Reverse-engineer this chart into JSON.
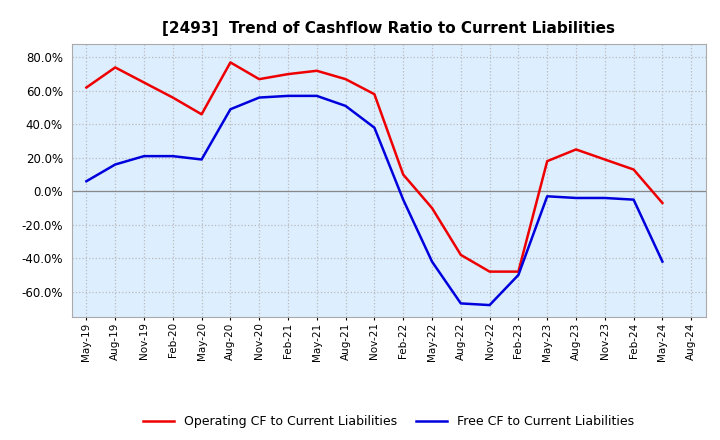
{
  "title": "[2493]  Trend of Cashflow Ratio to Current Liabilities",
  "x_labels": [
    "May-19",
    "Aug-19",
    "Nov-19",
    "Feb-20",
    "May-20",
    "Aug-20",
    "Nov-20",
    "Feb-21",
    "May-21",
    "Aug-21",
    "Nov-21",
    "Feb-22",
    "May-22",
    "Aug-22",
    "Nov-22",
    "Feb-23",
    "May-23",
    "Aug-23",
    "Nov-23",
    "Feb-24",
    "May-24",
    "Aug-24"
  ],
  "operating_cf": [
    62.0,
    74.0,
    65.0,
    56.0,
    46.0,
    77.0,
    67.0,
    70.0,
    72.0,
    67.0,
    58.0,
    10.0,
    -10.0,
    -38.0,
    -48.0,
    -48.0,
    18.0,
    25.0,
    19.0,
    13.0,
    -7.0,
    null
  ],
  "free_cf": [
    6.0,
    16.0,
    21.0,
    21.0,
    19.0,
    49.0,
    56.0,
    57.0,
    57.0,
    51.0,
    38.0,
    -5.0,
    -42.0,
    -67.0,
    -68.0,
    -50.0,
    -3.0,
    -4.0,
    -4.0,
    -5.0,
    -42.0,
    null
  ],
  "ylim": [
    -0.75,
    0.88
  ],
  "yticks": [
    -0.6,
    -0.4,
    -0.2,
    0.0,
    0.2,
    0.4,
    0.6,
    0.8
  ],
  "operating_color": "#EE0000",
  "free_color": "#0000DD",
  "background_color": "#FFFFFF",
  "plot_bg_color": "#DDEEFF",
  "grid_color": "#BBBBBB",
  "zero_line_color": "#888888",
  "border_color": "#AAAAAA",
  "legend_labels": [
    "Operating CF to Current Liabilities",
    "Free CF to Current Liabilities"
  ]
}
